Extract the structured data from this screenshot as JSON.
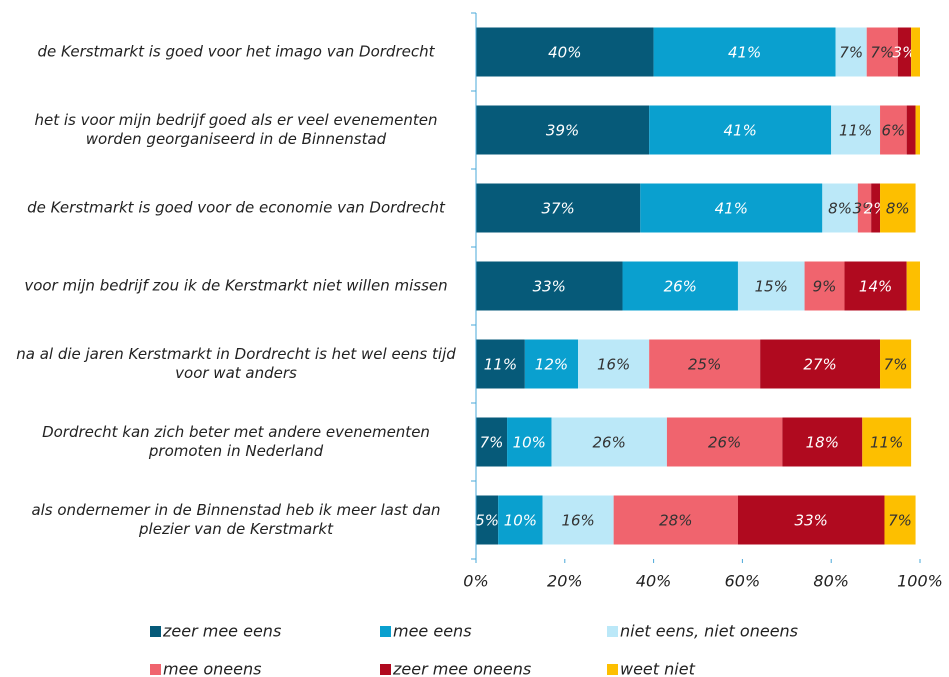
{
  "chart_data": {
    "type": "bar",
    "orientation": "horizontal",
    "stacked": true,
    "categories": [
      "de Kerstmarkt is goed voor het imago van Dordrecht",
      "het is voor mijn bedrijf goed als er veel evenementen worden georganiseerd in de Binnenstad",
      "de Kerstmarkt is goed voor de economie van Dordrecht",
      "voor mijn bedrijf zou ik de Kerstmarkt niet willen missen",
      "na al die jaren Kerstmarkt in Dordrecht is het wel eens tijd voor wat anders",
      "Dordrecht kan zich beter met andere evenementen promoten in Nederland",
      "als ondernemer in de Binnenstad heb ik meer last dan plezier van de Kerstmarkt"
    ],
    "series": [
      {
        "name": "zeer mee eens",
        "color": "#065a79",
        "values": [
          40,
          39,
          37,
          33,
          11,
          7,
          5
        ],
        "value_labels": [
          "40%",
          "39%",
          "37%",
          "33%",
          "11%",
          "7%",
          "5%"
        ]
      },
      {
        "name": "mee eens",
        "color": "#0aa0cf",
        "values": [
          41,
          41,
          41,
          26,
          12,
          10,
          10
        ],
        "value_labels": [
          "41%",
          "41%",
          "41%",
          "26%",
          "12%",
          "10%",
          "10%"
        ]
      },
      {
        "name": "niet eens, niet oneens",
        "color": "#bbe8f8",
        "values": [
          7,
          11,
          8,
          15,
          16,
          26,
          16
        ],
        "value_labels": [
          "7%",
          "11%",
          "8%",
          "15%",
          "16%",
          "26%",
          "16%"
        ]
      },
      {
        "name": "mee oneens",
        "color": "#f0646e",
        "values": [
          7,
          6,
          3,
          9,
          25,
          26,
          28
        ],
        "value_labels": [
          "7%",
          "6%",
          "3%",
          "9%",
          "25%",
          "26%",
          "28%"
        ]
      },
      {
        "name": "zeer mee oneens",
        "color": "#b00a1f",
        "values": [
          3,
          2,
          2,
          14,
          27,
          18,
          33
        ],
        "value_labels": [
          "3%",
          null,
          "2%",
          "14%",
          "27%",
          "18%",
          "33%"
        ]
      },
      {
        "name": "weet niet",
        "color": "#fdbf00",
        "values": [
          2,
          1,
          8,
          3,
          7,
          11,
          7
        ],
        "value_labels": [
          null,
          null,
          "8%",
          null,
          "7%",
          "11%",
          "7%"
        ]
      }
    ],
    "xlim": [
      0,
      100
    ],
    "xticks": [
      {
        "value": 0,
        "label": "0%"
      },
      {
        "value": 20,
        "label": "20%"
      },
      {
        "value": 40,
        "label": "40%"
      },
      {
        "value": 60,
        "label": "60%"
      },
      {
        "value": 80,
        "label": "80%"
      },
      {
        "value": 100,
        "label": "100%"
      }
    ],
    "legend": "bottom"
  }
}
